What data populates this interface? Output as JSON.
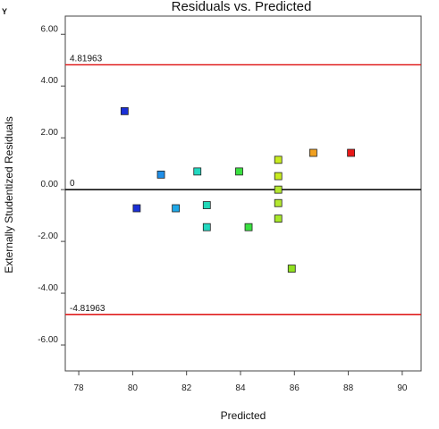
{
  "edge_text": [
    "Y"
  ],
  "chart_data": {
    "type": "scatter",
    "title": "Residuals vs. Predicted",
    "xlabel": "Predicted",
    "ylabel": "Externally Studentized Residuals",
    "xlim": [
      77.5,
      90.7
    ],
    "ylim": [
      -7.0,
      6.7
    ],
    "x_ticks": [
      78,
      80,
      82,
      84,
      86,
      88,
      90
    ],
    "y_ticks": [
      6.0,
      4.0,
      2.0,
      0.0,
      -2.0,
      -4.0,
      -6.0
    ],
    "x_tick_labels": [
      "78",
      "80",
      "82",
      "84",
      "86",
      "88",
      "90"
    ],
    "y_tick_labels": [
      "6.00",
      "4.00",
      "2.00",
      "0.00",
      "-2.00",
      "-4.00",
      "-6.00"
    ],
    "grid": false,
    "reference_lines": [
      {
        "y": 4.81963,
        "label": "4.81963",
        "color": "#e02020"
      },
      {
        "y": 0,
        "label": "0",
        "color": "#111111"
      },
      {
        "y": -4.81963,
        "label": "-4.81963",
        "color": "#e02020"
      }
    ],
    "points": [
      {
        "x": 79.7,
        "y": 3.03,
        "color": "#1a2fd6"
      },
      {
        "x": 80.15,
        "y": -0.72,
        "color": "#1a2fd6"
      },
      {
        "x": 81.05,
        "y": 0.58,
        "color": "#1f8fe8"
      },
      {
        "x": 81.6,
        "y": -0.72,
        "color": "#1ea8e8"
      },
      {
        "x": 82.4,
        "y": 0.7,
        "color": "#22d8c0"
      },
      {
        "x": 82.75,
        "y": -0.6,
        "color": "#22d8b8"
      },
      {
        "x": 82.75,
        "y": -1.45,
        "color": "#22d8c0"
      },
      {
        "x": 83.95,
        "y": 0.7,
        "color": "#3ae040"
      },
      {
        "x": 84.3,
        "y": -1.45,
        "color": "#3ae040"
      },
      {
        "x": 85.4,
        "y": 1.15,
        "color": "#c8ec20"
      },
      {
        "x": 85.4,
        "y": 0.52,
        "color": "#c8ec20"
      },
      {
        "x": 85.4,
        "y": 0.0,
        "color": "#b4e830"
      },
      {
        "x": 85.4,
        "y": -0.52,
        "color": "#b4e830"
      },
      {
        "x": 85.4,
        "y": -1.12,
        "color": "#a8e82a"
      },
      {
        "x": 85.9,
        "y": -3.05,
        "color": "#90e020"
      },
      {
        "x": 86.7,
        "y": 1.42,
        "color": "#f0a020"
      },
      {
        "x": 88.1,
        "y": 1.42,
        "color": "#e81818"
      }
    ]
  }
}
